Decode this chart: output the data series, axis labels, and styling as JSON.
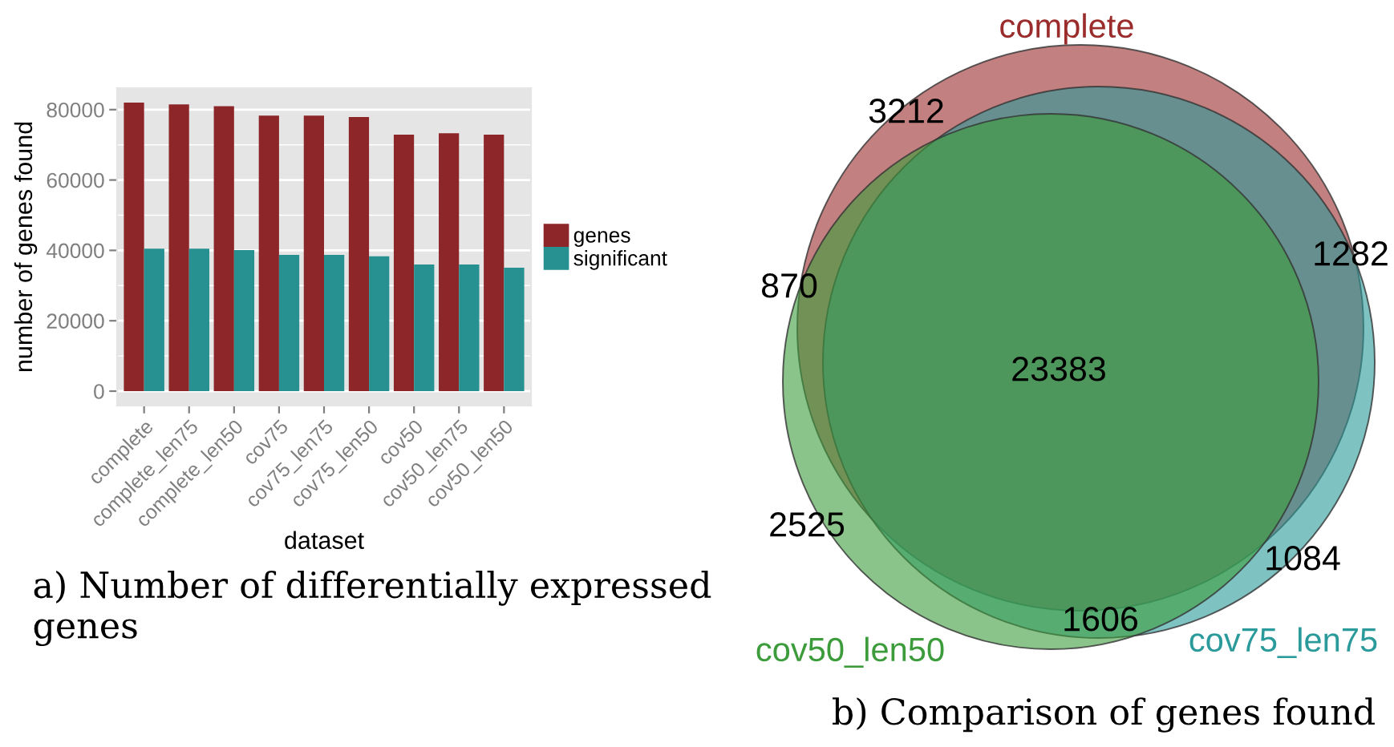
{
  "chart_data": [
    {
      "type": "bar",
      "title": "a) Number of differentially expressed genes",
      "xlabel": "dataset",
      "ylabel": "number of genes found",
      "categories": [
        "complete",
        "complete_len75",
        "complete_len50",
        "cov75",
        "cov75_len75",
        "cov75_len50",
        "cov50",
        "cov50_len75",
        "cov50_len50"
      ],
      "series": [
        {
          "name": "genes",
          "color": "#8c2628",
          "values": [
            82000,
            81500,
            81000,
            78300,
            78300,
            77900,
            72900,
            73300,
            72900
          ]
        },
        {
          "name": "significant",
          "color": "#279090",
          "values": [
            40500,
            40500,
            40100,
            38700,
            38700,
            38300,
            36000,
            36000,
            35100
          ]
        }
      ],
      "ylim": [
        -4100,
        86100
      ],
      "yticks": [
        0,
        20000,
        40000,
        60000,
        80000
      ],
      "grid": "y",
      "legend": "right"
    },
    {
      "type": "other",
      "title": "b) Comparison of genes found",
      "annotations": [
        "3212",
        "1282",
        "870",
        "23383",
        "2525",
        "1084",
        "1606"
      ],
      "series": [
        {
          "name": "complete",
          "color": "#9b2c2c"
        },
        {
          "name": "cov75_len75",
          "color": "#2a9a9a"
        },
        {
          "name": "cov50_len50",
          "color": "#3c9c3c"
        }
      ]
    }
  ]
}
